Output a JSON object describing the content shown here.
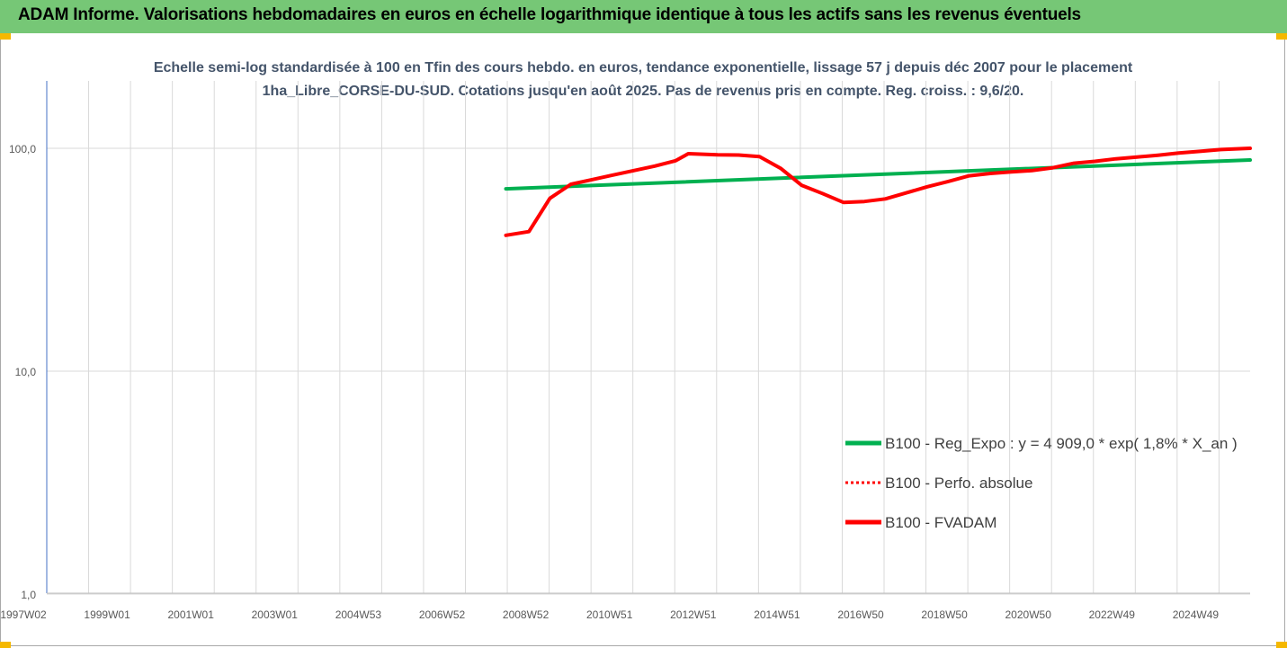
{
  "banner": {
    "title": "ADAM Informe. Valorisations hebdomadaires en euros en échelle logarithmique identique à tous les actifs sans les revenus éventuels"
  },
  "chart_data": {
    "type": "line",
    "title": "Echelle semi-log standardisée à 100 en Tfin des cours hebdo. en euros, tendance exponentielle, lissage 57 j depuis déc 2007 pour le placement 1ha_Libre_CORSE-DU-SUD. Cotations jusqu'en août 2025.  Pas de revenus pris en compte. Reg. croiss. : 9,6/20.",
    "y_scale": "log",
    "ylim": [
      1,
      200
    ],
    "y_ticks": [
      "1,0",
      "10,0",
      "100,0"
    ],
    "x_range": [
      1997.0,
      2025.7
    ],
    "x_ticks": [
      "1997W02",
      "1999W01",
      "2001W01",
      "2003W01",
      "2004W53",
      "2006W52",
      "2008W52",
      "2010W51",
      "2012W51",
      "2014W51",
      "2016W50",
      "2018W50",
      "2020W50",
      "2022W49",
      "2024W49"
    ],
    "grid": "vertical",
    "legend_position": "bottom-right",
    "series": [
      {
        "name": "B100 - Reg_Expo : y = 4 909,0 * exp( 1,8% *  X_an )",
        "color": "#00b050",
        "style": "solid",
        "x": [
          2007.95,
          2025.7
        ],
        "y": [
          65.8,
          88.6
        ]
      },
      {
        "name": "B100 - Perfo. absolue",
        "color": "#ff0000",
        "style": "dotted",
        "x": [],
        "y": []
      },
      {
        "name": "B100 - FVADAM",
        "color": "#ff0000",
        "style": "solid",
        "x": [
          2007.95,
          2008.5,
          2009.0,
          2009.5,
          2010.0,
          2010.5,
          2011.0,
          2011.5,
          2012.0,
          2012.3,
          2013.0,
          2013.5,
          2014.0,
          2014.5,
          2015.0,
          2015.5,
          2016.0,
          2016.5,
          2017.0,
          2017.5,
          2018.0,
          2018.5,
          2019.0,
          2019.5,
          2020.0,
          2020.5,
          2021.0,
          2021.5,
          2022.0,
          2022.5,
          2023.0,
          2023.5,
          2024.0,
          2024.5,
          2025.0,
          2025.7
        ],
        "y": [
          40.7,
          42.3,
          59.6,
          69.0,
          72.3,
          75.8,
          79.4,
          83.2,
          88.0,
          94.6,
          93.5,
          93.3,
          91.7,
          81.4,
          68.3,
          62.7,
          57.2,
          57.7,
          59.3,
          63.1,
          67.2,
          71.0,
          75.3,
          77.1,
          78.3,
          79.4,
          81.8,
          85.7,
          87.4,
          89.7,
          91.3,
          93.1,
          95.2,
          96.9,
          98.7,
          100.0
        ]
      }
    ]
  }
}
